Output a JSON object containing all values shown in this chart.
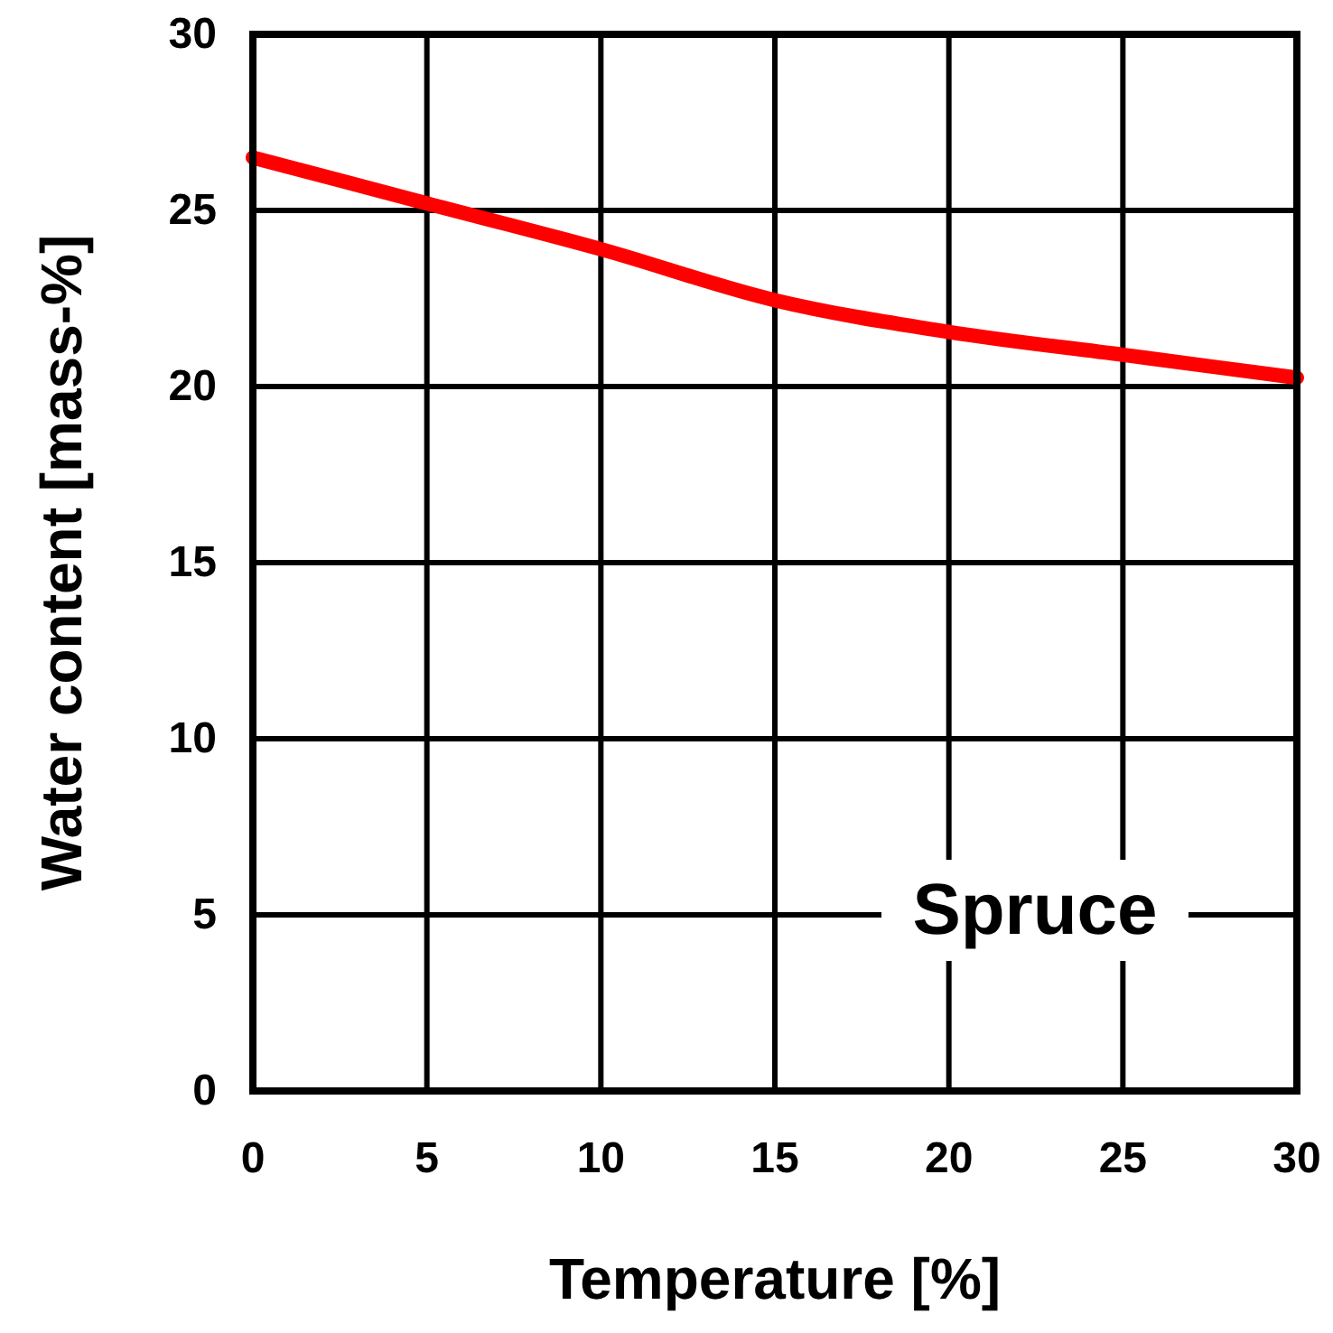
{
  "chart_data": {
    "type": "line",
    "xlabel": "Temperature [%]",
    "ylabel": "Water content [mass-%]",
    "annotations": [
      "Spruce"
    ],
    "x": [
      0,
      5,
      10,
      15,
      20,
      25,
      30
    ],
    "series": [
      {
        "color": "#ff0000",
        "values": [
          26.5,
          25.2,
          23.9,
          22.45,
          21.55,
          20.9,
          20.25
        ]
      }
    ],
    "xlim": [
      0,
      30
    ],
    "ylim": [
      0,
      30
    ],
    "xticks": [
      0,
      5,
      10,
      15,
      20,
      25,
      30
    ],
    "yticks": [
      0,
      5,
      10,
      15,
      20,
      25,
      30
    ],
    "grid": true,
    "marker": "none",
    "line_style": "solid"
  }
}
